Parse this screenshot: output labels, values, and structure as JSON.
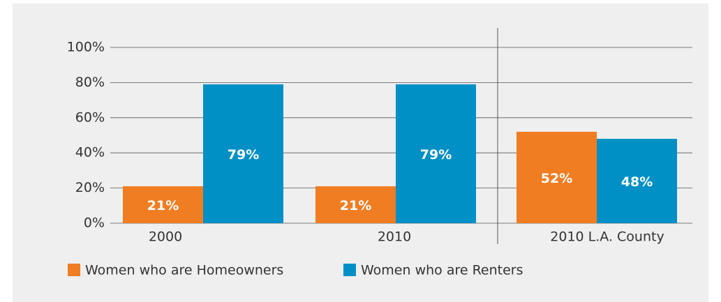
{
  "chart_data": {
    "type": "bar",
    "categories": [
      "2000",
      "2010",
      "2010 L.A. County"
    ],
    "series": [
      {
        "name": "Women who are Homeowners",
        "color": "#f07d22",
        "values": [
          21,
          21,
          52
        ],
        "value_labels": [
          "21%",
          "21%",
          "52%"
        ]
      },
      {
        "name": "Women who are Renters",
        "color": "#0090c6",
        "values": [
          79,
          79,
          48
        ],
        "value_labels": [
          "79%",
          "79%",
          "48%"
        ]
      }
    ],
    "ylim": [
      0,
      100
    ],
    "yticks": [
      {
        "value": 0,
        "label": "0%"
      },
      {
        "value": 20,
        "label": "20%"
      },
      {
        "value": 40,
        "label": "40%"
      },
      {
        "value": 60,
        "label": "60%"
      },
      {
        "value": 80,
        "label": "80%"
      },
      {
        "value": 100,
        "label": "100%"
      }
    ],
    "grid": true
  }
}
